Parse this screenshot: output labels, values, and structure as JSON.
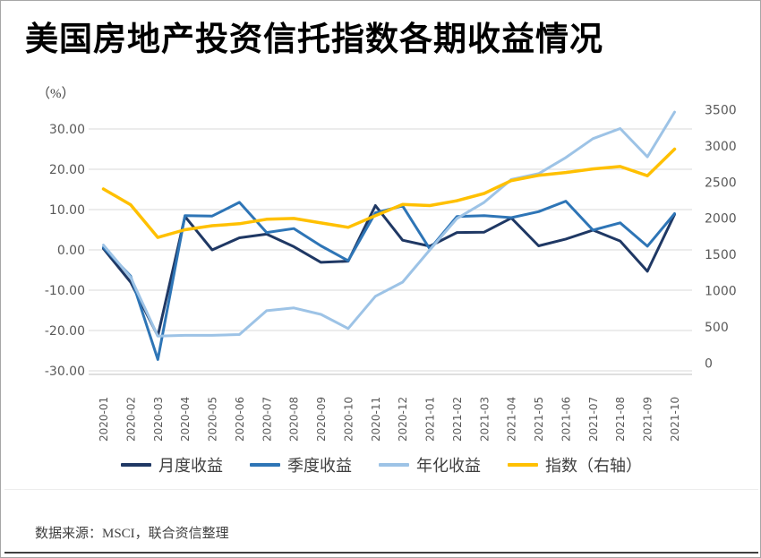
{
  "title": "美国房地产投资信托指数各期收益情况",
  "unit_label": "（%）",
  "source_note": "数据来源：MSCI，联合资信整理",
  "colors": {
    "grid": "#d9d9d9",
    "axis_line": "#bfbfbf",
    "tick_text": "#595959",
    "navy": "#1f3864",
    "medium_blue": "#2e75b6",
    "light_blue": "#9dc3e6",
    "gold": "#ffc000"
  },
  "chart_data": {
    "type": "line",
    "title": "美国房地产投资信托指数各期收益情况",
    "categories": [
      "2020-01",
      "2020-02",
      "2020-03",
      "2020-04",
      "2020-05",
      "2020-06",
      "2020-07",
      "2020-08",
      "2020-09",
      "2020-10",
      "2020-11",
      "2020-12",
      "2021-01",
      "2021-02",
      "2021-03",
      "2021-04",
      "2021-05",
      "2021-06",
      "2021-07",
      "2021-08",
      "2021-09",
      "2021-10"
    ],
    "series": [
      {
        "name": "月度收益",
        "axis": "left",
        "color": "#1f3864",
        "values": [
          0.3,
          -8.0,
          -21.3,
          8.3,
          0.0,
          3.0,
          3.9,
          0.8,
          -3.1,
          -2.8,
          11.0,
          2.4,
          0.9,
          4.3,
          4.4,
          7.9,
          1.0,
          2.7,
          4.9,
          2.2,
          -5.3,
          8.8
        ]
      },
      {
        "name": "季度收益",
        "axis": "left",
        "color": "#2e75b6",
        "values": [
          0.6,
          -6.5,
          -27.2,
          8.5,
          8.4,
          11.8,
          4.3,
          5.3,
          1.0,
          -2.7,
          9.2,
          10.9,
          0.2,
          8.3,
          8.5,
          8.0,
          9.5,
          12.1,
          4.9,
          6.7,
          0.9,
          9.0
        ]
      },
      {
        "name": "年化收益",
        "axis": "left",
        "color": "#9dc3e6",
        "values": [
          1.2,
          -6.8,
          -21.4,
          -21.2,
          -21.2,
          -21.0,
          -15.1,
          -14.4,
          -16.0,
          -19.5,
          -11.5,
          -8.0,
          0.0,
          7.8,
          11.8,
          17.5,
          18.9,
          22.9,
          27.6,
          30.1,
          23.1,
          34.2
        ]
      },
      {
        "name": "指数（右轴）",
        "axis": "right",
        "color": "#ffc000",
        "values": [
          2405,
          2187,
          1735,
          1842,
          1897,
          1924,
          1986,
          1997,
          1936,
          1875,
          2036,
          2192,
          2176,
          2243,
          2343,
          2521,
          2593,
          2632,
          2682,
          2715,
          2588,
          2956
        ]
      }
    ],
    "left_axis": {
      "unit": "（%）",
      "ticks": [
        30,
        20,
        10,
        0,
        -10,
        -20,
        -30
      ],
      "range": [
        -30,
        30
      ],
      "tick_format": "two_decimals"
    },
    "right_axis": {
      "ticks": [
        3500,
        3000,
        2500,
        2000,
        1500,
        1000,
        500,
        0
      ],
      "range": [
        0,
        3500
      ]
    },
    "grid": true,
    "legend_position": "bottom",
    "xlabel_rotation": -90
  }
}
